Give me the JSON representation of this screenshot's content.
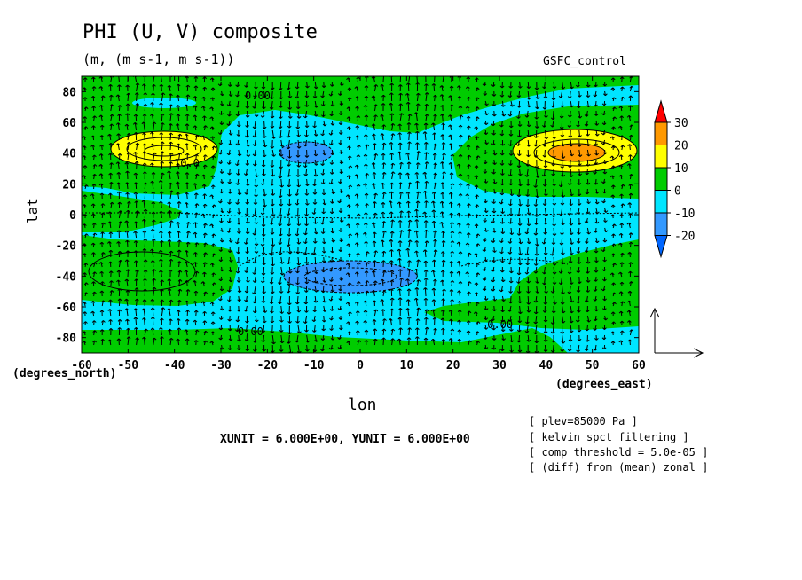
{
  "chart_data": {
    "type": "contour",
    "title": "PHI (U, V) composite",
    "subtitle": "(m, (m s-1, m s-1))",
    "run_label": "GSFC_control",
    "xlabel": "lon",
    "ylabel": "lat",
    "x_coord_label": "(degrees_east)",
    "y_coord_label": "(degrees_north)",
    "xlim": [
      -60,
      60
    ],
    "ylim": [
      -90,
      90
    ],
    "x_ticks": [
      -60,
      -50,
      -40,
      -30,
      -20,
      -10,
      0,
      10,
      20,
      30,
      40,
      50,
      60
    ],
    "y_ticks": [
      80,
      60,
      40,
      20,
      0,
      -20,
      -40,
      -60,
      -80
    ],
    "colorbar": {
      "levels": [
        30,
        20,
        10,
        0,
        -10,
        -20
      ],
      "colors": [
        "#ff0000",
        "#ff9900",
        "#ffff00",
        "#00cc00",
        "#00e5ff",
        "#3399ff",
        "#0066ff"
      ]
    },
    "contour_labels": [
      "0.00",
      "10.0",
      "0.00",
      "-0.00"
    ],
    "vector_reference": "XUNIT = 6.000E+00, YUNIT = 6.000E+00",
    "notes": [
      "[ plev=85000 Pa ]",
      "[ kelvin spct filtering ]",
      "[ comp threshold = 5.0e-05 ]",
      "[ (diff) from (mean) zonal ]"
    ]
  }
}
